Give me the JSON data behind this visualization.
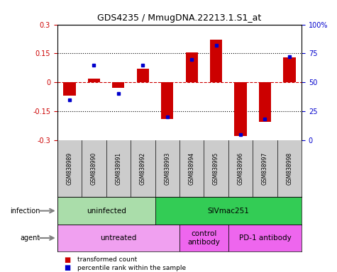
{
  "title": "GDS4235 / MmugDNA.22213.1.S1_at",
  "samples": [
    "GSM838989",
    "GSM838990",
    "GSM838991",
    "GSM838992",
    "GSM838993",
    "GSM838994",
    "GSM838995",
    "GSM838996",
    "GSM838997",
    "GSM838998"
  ],
  "red_bars": [
    -0.07,
    0.02,
    -0.03,
    0.07,
    -0.19,
    0.155,
    0.22,
    -0.28,
    -0.205,
    0.13
  ],
  "blue_dots": [
    35,
    65,
    40,
    65,
    20,
    70,
    82,
    5,
    18,
    72
  ],
  "ylim": [
    -0.3,
    0.3
  ],
  "y2lim": [
    0,
    100
  ],
  "yticks": [
    -0.3,
    -0.15,
    0,
    0.15,
    0.3
  ],
  "y2ticks": [
    0,
    25,
    50,
    75,
    100
  ],
  "y2ticklabels": [
    "0",
    "25",
    "50",
    "75",
    "100%"
  ],
  "dotted_lines": [
    0.15,
    -0.15
  ],
  "zero_line": 0.0,
  "infection_groups": [
    {
      "label": "uninfected",
      "start": 0,
      "end": 4,
      "color": "#aaddaa"
    },
    {
      "label": "SIVmac251",
      "start": 4,
      "end": 10,
      "color": "#33cc55"
    }
  ],
  "agent_groups": [
    {
      "label": "untreated",
      "start": 0,
      "end": 5,
      "color": "#f0a0f0"
    },
    {
      "label": "control\nantibody",
      "start": 5,
      "end": 7,
      "color": "#ee66ee"
    },
    {
      "label": "PD-1 antibody",
      "start": 7,
      "end": 10,
      "color": "#ee66ee"
    }
  ],
  "bar_color": "#cc0000",
  "dot_color": "#0000cc",
  "zero_color": "#cc0000",
  "left_tick_color": "#cc0000",
  "right_tick_color": "#0000cc",
  "sample_bg_color": "#cccccc",
  "legend_items": [
    {
      "color": "#cc0000",
      "label": "transformed count"
    },
    {
      "color": "#0000cc",
      "label": "percentile rank within the sample"
    }
  ]
}
